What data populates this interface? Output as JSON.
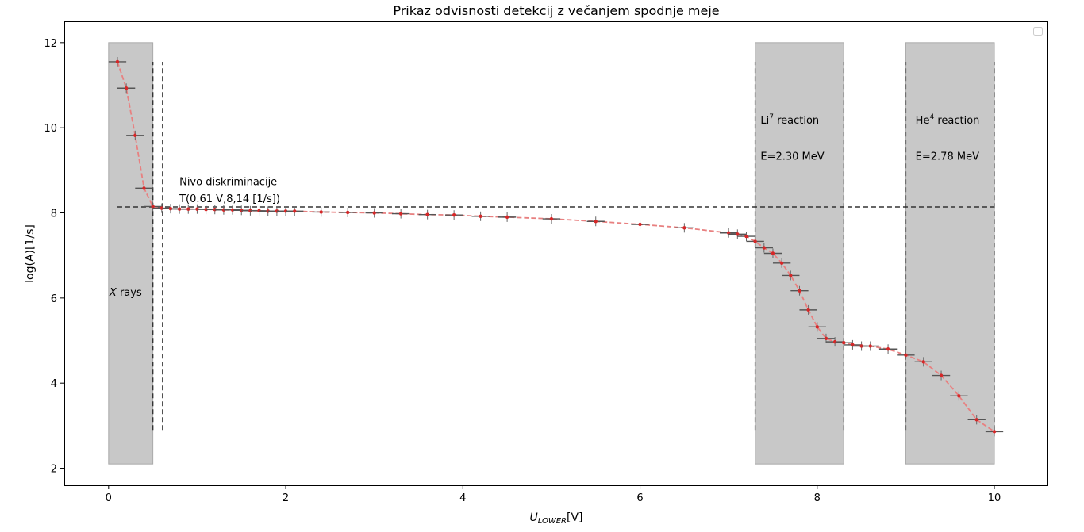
{
  "chart_data": {
    "type": "scatter",
    "title": "Prikaz odvisnosti detekcij z večanjem spodnje meje",
    "xlabel": "U",
    "xlabel_sub": "LOWER",
    "xlabel_unit": "[V]",
    "ylabel": "log(A)[1/s]",
    "xlim": [
      -0.5,
      10.6
    ],
    "ylim": [
      1.6,
      12.5
    ],
    "xticks": [
      0,
      2,
      4,
      6,
      8,
      10
    ],
    "yticks": [
      2,
      4,
      6,
      8,
      10,
      12
    ],
    "grid": false,
    "legend": "top-right (empty)",
    "colors": {
      "series": "#d62728",
      "line": "#e88080",
      "errorbar": "#555555",
      "band": "#c8c8c8",
      "dashed": "#333333"
    },
    "x_error": 0.1,
    "series": [
      {
        "x": [
          0.1,
          0.2,
          0.3,
          0.4,
          0.5,
          0.6,
          0.7,
          0.8,
          0.9,
          1.0,
          1.1,
          1.2,
          1.3,
          1.4,
          1.5,
          1.6,
          1.7,
          1.8,
          1.9,
          2.0,
          2.1,
          2.4,
          2.7,
          3.0,
          3.3,
          3.6,
          3.9,
          4.2,
          4.5,
          5.0,
          5.5,
          6.0,
          6.5,
          7.0,
          7.1,
          7.2,
          7.3,
          7.4,
          7.5,
          7.6,
          7.7,
          7.8,
          7.9,
          8.0,
          8.1,
          8.2,
          8.3,
          8.4,
          8.5,
          8.6,
          8.8,
          9.0,
          9.2,
          9.4,
          9.6,
          9.8,
          10.0
        ],
        "y": [
          11.55,
          10.93,
          9.82,
          8.58,
          8.15,
          8.11,
          8.1,
          8.09,
          8.09,
          8.09,
          8.08,
          8.08,
          8.07,
          8.07,
          8.06,
          8.05,
          8.05,
          8.04,
          8.04,
          8.04,
          8.04,
          8.02,
          8.01,
          8.0,
          7.98,
          7.96,
          7.95,
          7.92,
          7.9,
          7.86,
          7.8,
          7.73,
          7.65,
          7.53,
          7.5,
          7.45,
          7.33,
          7.18,
          7.05,
          6.82,
          6.53,
          6.17,
          5.72,
          5.32,
          5.05,
          4.97,
          4.95,
          4.9,
          4.87,
          4.87,
          4.8,
          4.66,
          4.5,
          4.18,
          3.7,
          3.14,
          2.86
        ]
      }
    ],
    "bands": [
      {
        "x": [
          0.0,
          0.5
        ],
        "y": [
          2.1,
          12.0
        ]
      },
      {
        "x": [
          7.3,
          8.3
        ],
        "y": [
          2.1,
          12.0
        ]
      },
      {
        "x": [
          9.0,
          10.0
        ],
        "y": [
          2.1,
          12.0
        ]
      }
    ],
    "vlines": [
      {
        "x": 0.5,
        "y": [
          2.9,
          11.55
        ]
      },
      {
        "x": 0.61,
        "y": [
          2.9,
          11.55
        ]
      },
      {
        "x": 7.3,
        "y": [
          2.9,
          11.55
        ]
      },
      {
        "x": 8.3,
        "y": [
          2.9,
          11.55
        ]
      },
      {
        "x": 9.0,
        "y": [
          2.9,
          11.55
        ]
      },
      {
        "x": 10.0,
        "y": [
          2.9,
          11.55
        ]
      }
    ],
    "hline": {
      "y": 8.14,
      "x": [
        0.1,
        10.0
      ]
    },
    "annotations": [
      {
        "text": "Nivo diskriminacije",
        "x": 0.8,
        "y": 8.65
      },
      {
        "text": "T(0.61 V,8,14 [1/s])",
        "x": 0.8,
        "y": 8.25
      },
      {
        "text": "X",
        "text2": " rays",
        "italic_first": true,
        "x": 0.01,
        "y": 6.05
      },
      {
        "text": "Li",
        "sup": "7",
        "text2": " reaction",
        "x": 7.36,
        "y": 10.1
      },
      {
        "text": "E=2.30 MeV",
        "x": 7.36,
        "y": 9.25
      },
      {
        "text": "He",
        "sup": "4",
        "text2": " reaction",
        "x": 9.11,
        "y": 10.1
      },
      {
        "text": "E=2.78 MeV",
        "x": 9.11,
        "y": 9.25
      }
    ]
  }
}
